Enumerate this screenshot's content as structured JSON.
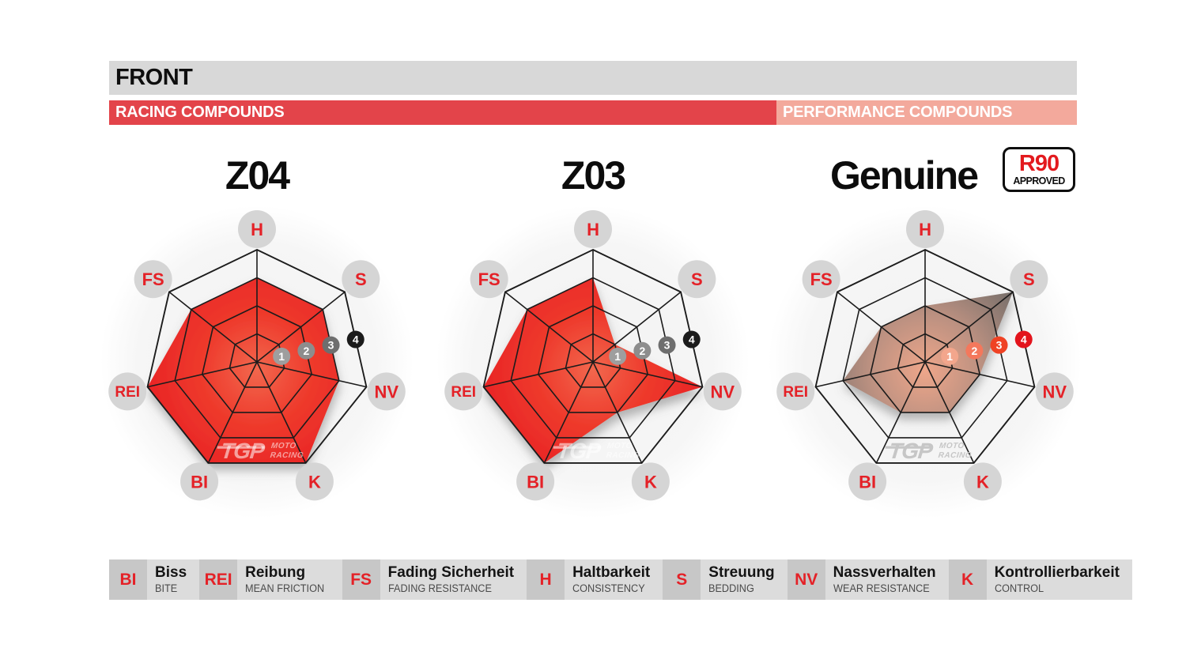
{
  "header": {
    "title": "FRONT",
    "racing_label": "RACING COMPOUNDS",
    "performance_label": "PERFORMANCE COMPOUNDS"
  },
  "chart_data": {
    "type": "radar",
    "axes": [
      "H",
      "S",
      "NV",
      "K",
      "BI",
      "REI",
      "FS"
    ],
    "scale": {
      "min": 0,
      "max": 4,
      "rings": 4,
      "ring_labels": [
        "1",
        "2",
        "3",
        "4"
      ]
    },
    "series": [
      {
        "name": "Z04",
        "group": "RACING COMPOUNDS",
        "style": "racing",
        "values": [
          3,
          3,
          3,
          4,
          4,
          4,
          3
        ]
      },
      {
        "name": "Z03",
        "group": "RACING COMPOUNDS",
        "style": "racing",
        "values": [
          3,
          1,
          4,
          2,
          4,
          4,
          3
        ]
      },
      {
        "name": "Genuine",
        "group": "PERFORMANCE COMPOUNDS",
        "style": "performance",
        "values": [
          2,
          4,
          2,
          2,
          2,
          3,
          2
        ],
        "badge": {
          "line1": "R90",
          "line2": "APPROVED"
        }
      }
    ]
  },
  "watermark": {
    "tgp": "TGP",
    "moto": "MOTO",
    "racing": "RACING"
  },
  "legend": [
    {
      "abbr": "BI",
      "german": "Biss",
      "english": "BITE"
    },
    {
      "abbr": "REI",
      "german": "Reibung",
      "english": "MEAN FRICTION"
    },
    {
      "abbr": "FS",
      "german": "Fading Sicherheit",
      "english": "FADING RESISTANCE"
    },
    {
      "abbr": "H",
      "german": "Haltbarkeit",
      "english": "CONSISTENCY"
    },
    {
      "abbr": "S",
      "german": "Streuung",
      "english": "BEDDING"
    },
    {
      "abbr": "NV",
      "german": "Nassverhalten",
      "english": "WEAR RESISTANCE"
    },
    {
      "abbr": "K",
      "german": "Kontrollierbarkeit",
      "english": "CONTROL"
    }
  ],
  "colors": {
    "header_bar": "#D8D8D8",
    "racing_bar": "#E3444A",
    "performance_bar": "#F3A99C",
    "grid": "#1C1C1C",
    "label_circle": "#D5D5D5",
    "label_text": "#E42127",
    "legend_abbr_bg": "#C7C7C7",
    "legend_text_bg": "#DCDCDC",
    "legend_german_text": "#141414",
    "legend_english_text": "#4A4A4A",
    "r90_red": "#E31A1E",
    "watermark_on_fill": "rgba(255,255,255,0.55)",
    "watermark_on_white": "#C6C6C6",
    "racing_fill": [
      "#F2674D",
      "#EE3A2C",
      "#E82025"
    ],
    "performance_fill": [
      "#EEA68A",
      "#BC9181",
      "#6F6B68"
    ],
    "racing_badges": [
      "#9E9E9E",
      "#8D8D8D",
      "#6E6E6E",
      "#1B1B1B"
    ],
    "performance_badges": [
      "#F3A68C",
      "#F4785C",
      "#EF4224",
      "#E3141C"
    ]
  }
}
